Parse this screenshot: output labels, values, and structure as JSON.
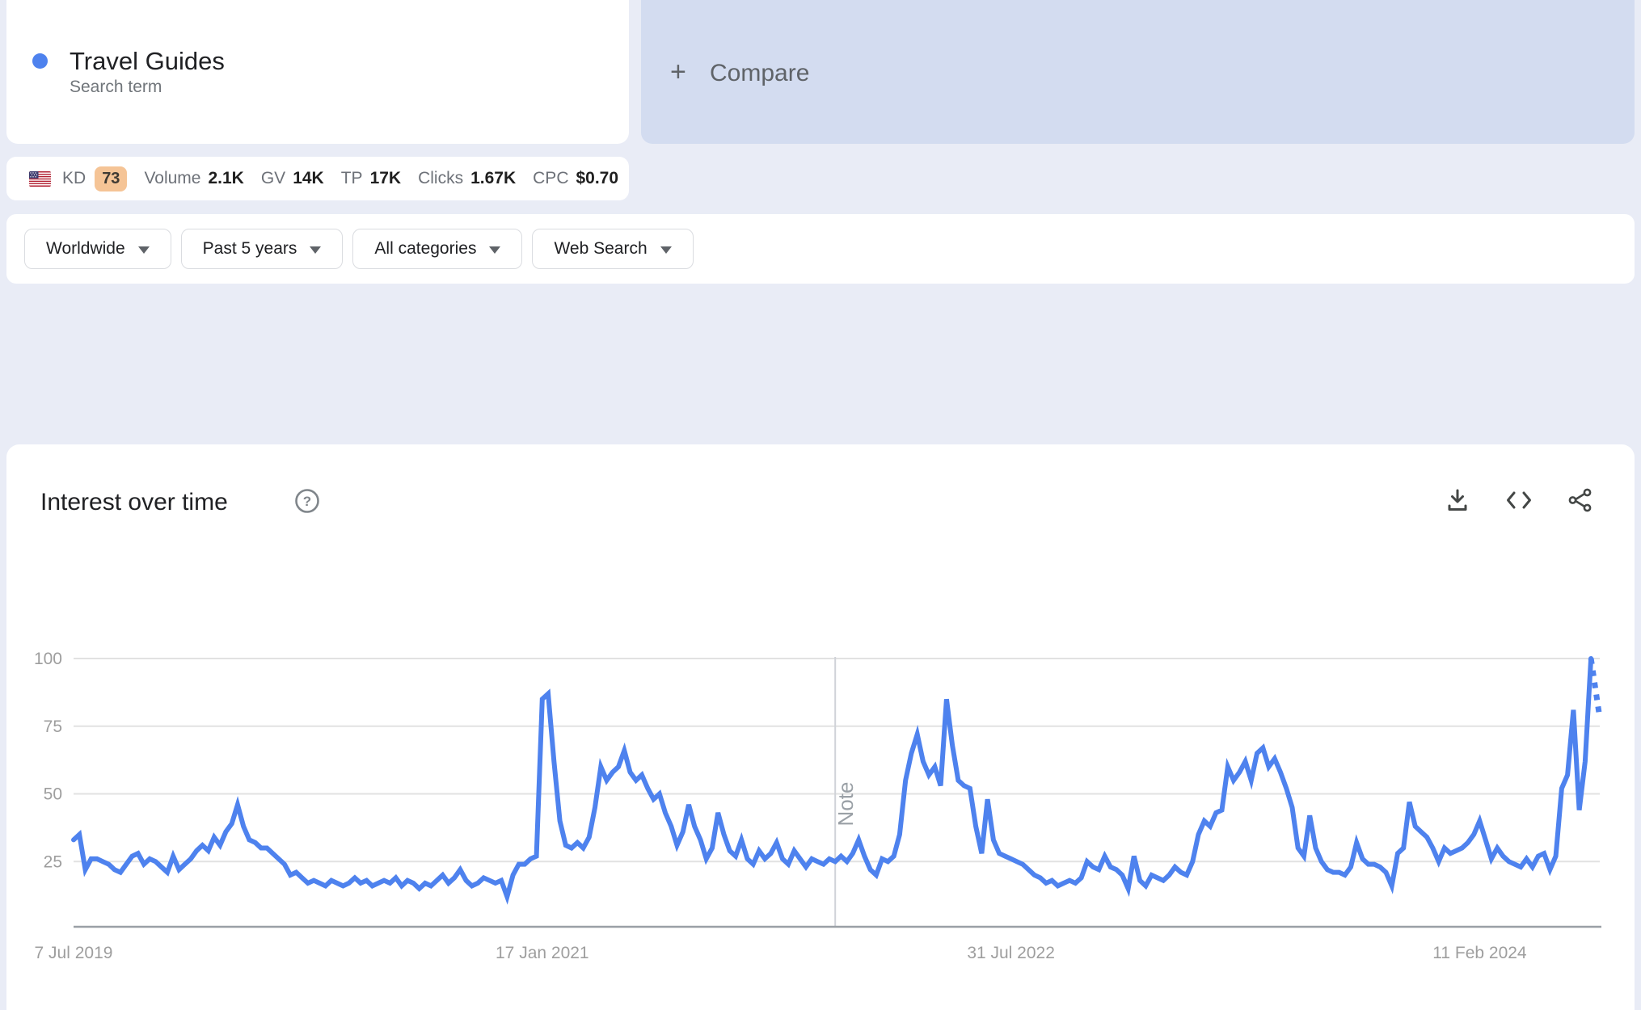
{
  "term_card": {
    "term": "Travel Guides",
    "type_label": "Search term",
    "dot_color": "#4e82ee"
  },
  "compare_card": {
    "plus": "+",
    "label": "Compare"
  },
  "metrics_bar": {
    "flag_name": "us-flag",
    "kd_label": "KD",
    "kd_value": "73",
    "items": [
      {
        "label": "Volume",
        "value": "2.1K"
      },
      {
        "label": "GV",
        "value": "14K"
      },
      {
        "label": "TP",
        "value": "17K"
      },
      {
        "label": "Clicks",
        "value": "1.67K"
      },
      {
        "label": "CPC",
        "value": "$0.70"
      }
    ]
  },
  "filters": [
    {
      "label": "Worldwide"
    },
    {
      "label": "Past 5 years"
    },
    {
      "label": "All categories"
    },
    {
      "label": "Web Search"
    }
  ],
  "section": {
    "title": "Interest over time"
  },
  "chart_data": {
    "type": "line",
    "title": "Interest over time",
    "series_name": "Travel Guides",
    "line_color": "#4e82ee",
    "grid": true,
    "legend": "none",
    "ylim": [
      0,
      100
    ],
    "y_ticks": [
      100,
      75,
      50,
      25
    ],
    "x_tick_labels": [
      "7 Jul 2019",
      "17 Jan 2021",
      "31 Jul 2022",
      "11 Feb 2024"
    ],
    "x_tick_weeks": [
      0,
      80,
      160,
      240
    ],
    "note_label": "Note",
    "note_week": 130,
    "values": [
      33,
      35,
      22,
      26,
      26,
      25,
      24,
      22,
      21,
      24,
      27,
      28,
      24,
      26,
      25,
      23,
      21,
      27,
      22,
      24,
      26,
      29,
      31,
      29,
      34,
      31,
      36,
      39,
      46,
      38,
      33,
      32,
      30,
      30,
      28,
      26,
      24,
      20,
      21,
      19,
      17,
      18,
      17,
      16,
      18,
      17,
      16,
      17,
      19,
      17,
      18,
      16,
      17,
      18,
      17,
      19,
      16,
      18,
      17,
      15,
      17,
      16,
      18,
      20,
      17,
      19,
      22,
      18,
      16,
      17,
      19,
      18,
      17,
      18,
      12,
      20,
      24,
      24,
      26,
      27,
      85,
      87,
      62,
      40,
      31,
      30,
      32,
      30,
      34,
      45,
      60,
      55,
      58,
      60,
      66,
      58,
      55,
      57,
      52,
      48,
      50,
      43,
      38,
      31,
      36,
      46,
      38,
      33,
      26,
      30,
      43,
      35,
      29,
      27,
      33,
      26,
      24,
      29,
      26,
      28,
      32,
      26,
      24,
      29,
      26,
      23,
      26,
      25,
      24,
      26,
      25,
      27,
      25,
      28,
      33,
      27,
      22,
      20,
      26,
      25,
      27,
      35,
      55,
      65,
      72,
      62,
      57,
      60,
      53,
      85,
      68,
      55,
      53,
      52,
      38,
      28,
      48,
      33,
      28,
      27,
      26,
      25,
      24,
      22,
      20,
      19,
      17,
      18,
      16,
      17,
      18,
      17,
      19,
      25,
      23,
      22,
      27,
      23,
      22,
      20,
      15,
      27,
      18,
      16,
      20,
      19,
      18,
      20,
      23,
      21,
      20,
      25,
      35,
      40,
      38,
      43,
      44,
      60,
      55,
      58,
      62,
      55,
      65,
      67,
      60,
      63,
      58,
      52,
      45,
      30,
      27,
      42,
      30,
      25,
      22,
      21,
      21,
      20,
      23,
      32,
      26,
      24,
      24,
      23,
      21,
      16,
      28,
      30,
      47,
      38,
      36,
      34,
      30,
      25,
      30,
      28,
      29,
      30,
      32,
      35,
      40,
      33,
      26,
      30,
      27,
      25,
      24,
      23,
      26,
      23,
      27,
      28,
      22,
      27,
      52,
      57,
      81,
      44,
      62,
      100
    ],
    "partial_value": 78
  }
}
